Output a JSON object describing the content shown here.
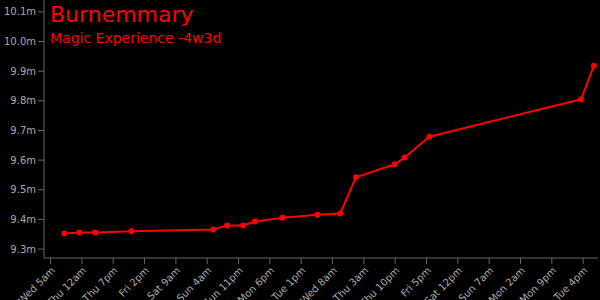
{
  "chart_data": {
    "type": "line",
    "title": "Burnemmary",
    "subtitle": "Magic Experience -4w3d",
    "color": "#ff0000",
    "marker": "circle",
    "grid": false,
    "x": [
      8.4,
      17.4,
      27,
      49,
      98.6,
      107,
      116.7,
      123.9,
      140.7,
      161.8,
      175.6,
      185.2,
      208.7,
      214.7,
      229.7,
      321.7,
      329.5
    ],
    "values": [
      9.353,
      9.356,
      9.356,
      9.36,
      9.366,
      9.38,
      9.38,
      9.393,
      9.406,
      9.416,
      9.42,
      9.542,
      9.586,
      9.609,
      9.679,
      9.805,
      9.918
    ],
    "xlim": [
      -4,
      332
    ],
    "xticks": [
      {
        "value": 0,
        "label": "Wed 5am"
      },
      {
        "value": 19,
        "label": "Thu 12am"
      },
      {
        "value": 38,
        "label": "Thu 7pm"
      },
      {
        "value": 57,
        "label": "Fri 2pm"
      },
      {
        "value": 76,
        "label": "Sat 9am"
      },
      {
        "value": 95,
        "label": "Sun 4am"
      },
      {
        "value": 114,
        "label": "Sun 11pm"
      },
      {
        "value": 133,
        "label": "Mon 6pm"
      },
      {
        "value": 152,
        "label": "Tue 1pm"
      },
      {
        "value": 171,
        "label": "Wed 8am"
      },
      {
        "value": 190,
        "label": "Thu 3am"
      },
      {
        "value": 209,
        "label": "Thu 10pm"
      },
      {
        "value": 228,
        "label": "Fri 5pm"
      },
      {
        "value": 247,
        "label": "Sat 12pm"
      },
      {
        "value": 266,
        "label": "Sun 7am"
      },
      {
        "value": 285,
        "label": "Mon 2am"
      },
      {
        "value": 304,
        "label": "Mon 9pm"
      },
      {
        "value": 323,
        "label": "Tue 4pm"
      }
    ],
    "ylim": [
      9.27,
      10.14
    ],
    "yticks": [
      {
        "value": 9.3,
        "label": "9.3m"
      },
      {
        "value": 9.4,
        "label": "9.4m"
      },
      {
        "value": 9.5,
        "label": "9.5m"
      },
      {
        "value": 9.6,
        "label": "9.6m"
      },
      {
        "value": 9.7,
        "label": "9.7m"
      },
      {
        "value": 9.8,
        "label": "9.8m"
      },
      {
        "value": 9.9,
        "label": "9.9m"
      },
      {
        "value": 10.0,
        "label": "10.0m"
      },
      {
        "value": 10.1,
        "label": "10.1m"
      }
    ]
  }
}
